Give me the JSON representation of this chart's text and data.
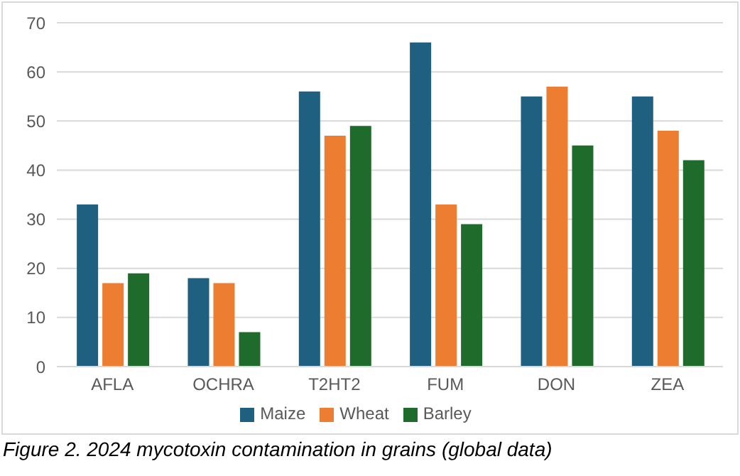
{
  "chart_data": {
    "type": "bar",
    "categories": [
      "AFLA",
      "OCHRA",
      "T2HT2",
      "FUM",
      "DON",
      "ZEA"
    ],
    "series": [
      {
        "name": "Maize",
        "color": "#1f5f80",
        "values": [
          33,
          18,
          56,
          66,
          55,
          55
        ]
      },
      {
        "name": "Wheat",
        "color": "#ed7d31",
        "values": [
          17,
          17,
          47,
          33,
          57,
          48
        ]
      },
      {
        "name": "Barley",
        "color": "#1e6b2c",
        "values": [
          19,
          7,
          49,
          29,
          45,
          42
        ]
      }
    ],
    "ylim": [
      0,
      70
    ],
    "yticks": [
      0,
      10,
      20,
      30,
      40,
      50,
      60,
      70
    ],
    "grid": "y",
    "legend": "bottom",
    "annotations": [
      "Figure 2. 2024 mycotoxin contamination in grains (global data)"
    ]
  }
}
